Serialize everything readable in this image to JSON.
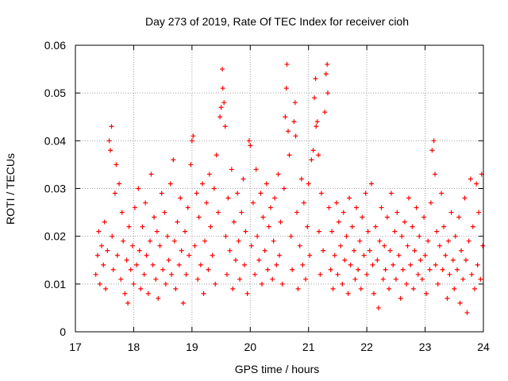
{
  "chart_data": {
    "type": "scatter",
    "title": "Day 273 of 2019, Rate Of TEC Index for receiver cioh",
    "xlabel": "GPS time / hours",
    "ylabel": "ROTI / TECUs",
    "xlim": [
      17,
      24
    ],
    "ylim": [
      0,
      0.06
    ],
    "x_ticks": [
      17,
      18,
      19,
      20,
      21,
      22,
      23,
      24
    ],
    "x_tick_labels": [
      "17",
      "18",
      "19",
      "20",
      "21",
      "22",
      "23",
      "24"
    ],
    "y_ticks": [
      0,
      0.01,
      0.02,
      0.03,
      0.04,
      0.05,
      0.06
    ],
    "y_tick_labels": [
      "0",
      "0.01",
      "0.02",
      "0.03",
      "0.04",
      "0.05",
      "0.06"
    ],
    "grid": true,
    "marker": "+",
    "color": "#ff0000",
    "series": [
      {
        "name": "ROTI",
        "points": [
          [
            17.35,
            0.012
          ],
          [
            17.38,
            0.016
          ],
          [
            17.4,
            0.021
          ],
          [
            17.42,
            0.01
          ],
          [
            17.45,
            0.018
          ],
          [
            17.48,
            0.014
          ],
          [
            17.5,
            0.023
          ],
          [
            17.52,
            0.009
          ],
          [
            17.55,
            0.017
          ],
          [
            17.58,
            0.04
          ],
          [
            17.6,
            0.038
          ],
          [
            17.62,
            0.043
          ],
          [
            17.63,
            0.02
          ],
          [
            17.65,
            0.013
          ],
          [
            17.68,
            0.029
          ],
          [
            17.7,
            0.035
          ],
          [
            17.72,
            0.016
          ],
          [
            17.75,
            0.031
          ],
          [
            17.78,
            0.011
          ],
          [
            17.8,
            0.025
          ],
          [
            17.82,
            0.019
          ],
          [
            17.85,
            0.008
          ],
          [
            17.88,
            0.015
          ],
          [
            17.9,
            0.006
          ],
          [
            17.92,
            0.022
          ],
          [
            17.95,
            0.013
          ],
          [
            17.98,
            0.018
          ],
          [
            18.0,
            0.01
          ],
          [
            18.02,
            0.026
          ],
          [
            18.05,
            0.014
          ],
          [
            18.08,
            0.03
          ],
          [
            18.1,
            0.017
          ],
          [
            18.12,
            0.009
          ],
          [
            18.15,
            0.022
          ],
          [
            18.18,
            0.012
          ],
          [
            18.2,
            0.027
          ],
          [
            18.22,
            0.016
          ],
          [
            18.25,
            0.008
          ],
          [
            18.28,
            0.019
          ],
          [
            18.3,
            0.033
          ],
          [
            18.33,
            0.014
          ],
          [
            18.35,
            0.024
          ],
          [
            18.38,
            0.011
          ],
          [
            18.4,
            0.021
          ],
          [
            18.42,
            0.007
          ],
          [
            18.45,
            0.018
          ],
          [
            18.48,
            0.029
          ],
          [
            18.5,
            0.013
          ],
          [
            18.53,
            0.025
          ],
          [
            18.55,
            0.01
          ],
          [
            18.58,
            0.02
          ],
          [
            18.6,
            0.015
          ],
          [
            18.63,
            0.031
          ],
          [
            18.65,
            0.012
          ],
          [
            18.68,
            0.036
          ],
          [
            18.7,
            0.019
          ],
          [
            18.72,
            0.009
          ],
          [
            18.75,
            0.023
          ],
          [
            18.78,
            0.014
          ],
          [
            18.8,
            0.028
          ],
          [
            18.82,
            0.017
          ],
          [
            18.85,
            0.006
          ],
          [
            18.88,
            0.021
          ],
          [
            18.9,
            0.012
          ],
          [
            18.93,
            0.026
          ],
          [
            18.95,
            0.016
          ],
          [
            18.98,
            0.035
          ],
          [
            19.0,
            0.04
          ],
          [
            19.02,
            0.041
          ],
          [
            19.05,
            0.018
          ],
          [
            19.08,
            0.029
          ],
          [
            19.1,
            0.011
          ],
          [
            19.12,
            0.024
          ],
          [
            19.15,
            0.014
          ],
          [
            19.18,
            0.031
          ],
          [
            19.2,
            0.008
          ],
          [
            19.22,
            0.019
          ],
          [
            19.25,
            0.027
          ],
          [
            19.28,
            0.013
          ],
          [
            19.3,
            0.033
          ],
          [
            19.32,
            0.022
          ],
          [
            19.35,
            0.016
          ],
          [
            19.38,
            0.03
          ],
          [
            19.4,
            0.01
          ],
          [
            19.42,
            0.037
          ],
          [
            19.45,
            0.025
          ],
          [
            19.48,
            0.045
          ],
          [
            19.5,
            0.047
          ],
          [
            19.52,
            0.055
          ],
          [
            19.53,
            0.051
          ],
          [
            19.55,
            0.048
          ],
          [
            19.57,
            0.043
          ],
          [
            19.58,
            0.02
          ],
          [
            19.6,
            0.012
          ],
          [
            19.62,
            0.028
          ],
          [
            19.65,
            0.017
          ],
          [
            19.68,
            0.034
          ],
          [
            19.7,
            0.009
          ],
          [
            19.72,
            0.023
          ],
          [
            19.75,
            0.015
          ],
          [
            19.78,
            0.029
          ],
          [
            19.8,
            0.019
          ],
          [
            19.82,
            0.011
          ],
          [
            19.85,
            0.025
          ],
          [
            19.88,
            0.032
          ],
          [
            19.9,
            0.014
          ],
          [
            19.92,
            0.021
          ],
          [
            19.95,
            0.008
          ],
          [
            19.98,
            0.04
          ],
          [
            20.0,
            0.039
          ],
          [
            20.02,
            0.018
          ],
          [
            20.05,
            0.027
          ],
          [
            20.08,
            0.012
          ],
          [
            20.1,
            0.034
          ],
          [
            20.12,
            0.02
          ],
          [
            20.15,
            0.015
          ],
          [
            20.18,
            0.029
          ],
          [
            20.2,
            0.01
          ],
          [
            20.22,
            0.024
          ],
          [
            20.25,
            0.017
          ],
          [
            20.28,
            0.031
          ],
          [
            20.3,
            0.013
          ],
          [
            20.32,
            0.022
          ],
          [
            20.35,
            0.026
          ],
          [
            20.38,
            0.011
          ],
          [
            20.4,
            0.019
          ],
          [
            20.42,
            0.028
          ],
          [
            20.45,
            0.014
          ],
          [
            20.48,
            0.033
          ],
          [
            20.5,
            0.016
          ],
          [
            20.52,
            0.023
          ],
          [
            20.55,
            0.01
          ],
          [
            20.58,
            0.03
          ],
          [
            20.6,
            0.045
          ],
          [
            20.62,
            0.051
          ],
          [
            20.63,
            0.056
          ],
          [
            20.65,
            0.042
          ],
          [
            20.67,
            0.037
          ],
          [
            20.7,
            0.02
          ],
          [
            20.72,
            0.013
          ],
          [
            20.75,
            0.044
          ],
          [
            20.77,
            0.048
          ],
          [
            20.78,
            0.041
          ],
          [
            20.8,
            0.025
          ],
          [
            20.82,
            0.009
          ],
          [
            20.85,
            0.018
          ],
          [
            20.88,
            0.032
          ],
          [
            20.9,
            0.014
          ],
          [
            20.92,
            0.027
          ],
          [
            20.95,
            0.011
          ],
          [
            20.98,
            0.022
          ],
          [
            21.0,
            0.031
          ],
          [
            21.02,
            0.016
          ],
          [
            21.05,
            0.036
          ],
          [
            21.08,
            0.038
          ],
          [
            21.1,
            0.049
          ],
          [
            21.12,
            0.053
          ],
          [
            21.13,
            0.043
          ],
          [
            21.15,
            0.044
          ],
          [
            21.17,
            0.037
          ],
          [
            21.18,
            0.021
          ],
          [
            21.2,
            0.012
          ],
          [
            21.22,
            0.029
          ],
          [
            21.25,
            0.017
          ],
          [
            21.28,
            0.046
          ],
          [
            21.3,
            0.054
          ],
          [
            21.32,
            0.056
          ],
          [
            21.33,
            0.05
          ],
          [
            21.35,
            0.026
          ],
          [
            21.38,
            0.013
          ],
          [
            21.4,
            0.021
          ],
          [
            21.42,
            0.009
          ],
          [
            21.45,
            0.016
          ],
          [
            21.48,
            0.027
          ],
          [
            21.5,
            0.012
          ],
          [
            21.52,
            0.023
          ],
          [
            21.55,
            0.018
          ],
          [
            21.58,
            0.01
          ],
          [
            21.6,
            0.025
          ],
          [
            21.62,
            0.015
          ],
          [
            21.65,
            0.02
          ],
          [
            21.68,
            0.008
          ],
          [
            21.7,
            0.028
          ],
          [
            21.72,
            0.014
          ],
          [
            21.75,
            0.022
          ],
          [
            21.78,
            0.017
          ],
          [
            21.8,
            0.011
          ],
          [
            21.82,
            0.026
          ],
          [
            21.85,
            0.013
          ],
          [
            21.88,
            0.019
          ],
          [
            21.9,
            0.009
          ],
          [
            21.92,
            0.024
          ],
          [
            21.95,
            0.016
          ],
          [
            21.98,
            0.029
          ],
          [
            22.0,
            0.012
          ],
          [
            22.02,
            0.021
          ],
          [
            22.05,
            0.017
          ],
          [
            22.08,
            0.031
          ],
          [
            22.1,
            0.014
          ],
          [
            22.12,
            0.008
          ],
          [
            22.15,
            0.022
          ],
          [
            22.18,
            0.015
          ],
          [
            22.2,
            0.005
          ],
          [
            22.22,
            0.019
          ],
          [
            22.25,
            0.026
          ],
          [
            22.28,
            0.011
          ],
          [
            22.3,
            0.018
          ],
          [
            22.32,
            0.013
          ],
          [
            22.35,
            0.024
          ],
          [
            22.38,
            0.009
          ],
          [
            22.4,
            0.017
          ],
          [
            22.42,
            0.029
          ],
          [
            22.45,
            0.014
          ],
          [
            22.48,
            0.021
          ],
          [
            22.5,
            0.011
          ],
          [
            22.52,
            0.025
          ],
          [
            22.55,
            0.016
          ],
          [
            22.58,
            0.007
          ],
          [
            22.6,
            0.02
          ],
          [
            22.62,
            0.013
          ],
          [
            22.65,
            0.023
          ],
          [
            22.68,
            0.01
          ],
          [
            22.7,
            0.018
          ],
          [
            22.72,
            0.028
          ],
          [
            22.75,
            0.014
          ],
          [
            22.78,
            0.022
          ],
          [
            22.8,
            0.009
          ],
          [
            22.82,
            0.017
          ],
          [
            22.85,
            0.026
          ],
          [
            22.88,
            0.012
          ],
          [
            22.9,
            0.02
          ],
          [
            22.92,
            0.015
          ],
          [
            22.95,
            0.011
          ],
          [
            22.98,
            0.024
          ],
          [
            23.0,
            0.016
          ],
          [
            23.02,
            0.008
          ],
          [
            23.05,
            0.019
          ],
          [
            23.08,
            0.013
          ],
          [
            23.1,
            0.027
          ],
          [
            23.12,
            0.038
          ],
          [
            23.15,
            0.04
          ],
          [
            23.17,
            0.033
          ],
          [
            23.18,
            0.014
          ],
          [
            23.2,
            0.021
          ],
          [
            23.22,
            0.01
          ],
          [
            23.25,
            0.018
          ],
          [
            23.28,
            0.029
          ],
          [
            23.3,
            0.013
          ],
          [
            23.32,
            0.022
          ],
          [
            23.35,
            0.016
          ],
          [
            23.38,
            0.007
          ],
          [
            23.4,
            0.019
          ],
          [
            23.42,
            0.012
          ],
          [
            23.45,
            0.025
          ],
          [
            23.48,
            0.015
          ],
          [
            23.5,
            0.009
          ],
          [
            23.52,
            0.02
          ],
          [
            23.55,
            0.013
          ],
          [
            23.58,
            0.024
          ],
          [
            23.6,
            0.006
          ],
          [
            23.62,
            0.017
          ],
          [
            23.65,
            0.011
          ],
          [
            23.68,
            0.028
          ],
          [
            23.7,
            0.015
          ],
          [
            23.72,
            0.004
          ],
          [
            23.75,
            0.019
          ],
          [
            23.78,
            0.032
          ],
          [
            23.8,
            0.012
          ],
          [
            23.82,
            0.022
          ],
          [
            23.85,
            0.009
          ],
          [
            23.88,
            0.031
          ],
          [
            23.9,
            0.014
          ],
          [
            23.92,
            0.025
          ],
          [
            23.95,
            0.011
          ],
          [
            23.97,
            0.033
          ],
          [
            23.99,
            0.018
          ]
        ]
      }
    ]
  }
}
